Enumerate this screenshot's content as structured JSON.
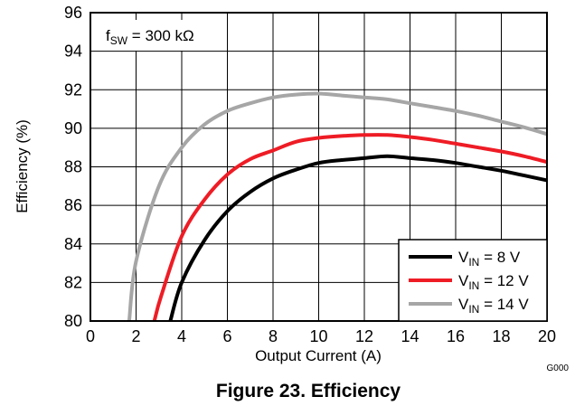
{
  "chart_data": {
    "type": "line",
    "xlabel": "Output Current (A)",
    "ylabel": "Efficiency (%)",
    "xlim": [
      0,
      20
    ],
    "ylim": [
      80,
      96
    ],
    "xticks": [
      0,
      2,
      4,
      6,
      8,
      10,
      12,
      14,
      16,
      18,
      20
    ],
    "yticks": [
      80,
      82,
      84,
      86,
      88,
      90,
      92,
      94,
      96
    ],
    "grid": true,
    "legend_placement": "bottom-right",
    "annotation": {
      "prefix": "f",
      "subscript": "SW",
      "suffix": " = 300 kΩ"
    },
    "series": [
      {
        "name": "VIN = 8 V",
        "legend": {
          "prefix": "V",
          "subscript": "IN",
          "suffix": " = 8 V"
        },
        "color": "#000000",
        "x": [
          3.5,
          4.0,
          5.0,
          6.0,
          7.0,
          8.0,
          9.0,
          10.0,
          11.0,
          12.0,
          13.0,
          14.0,
          15.0,
          16.0,
          17.0,
          18.0,
          19.0,
          20.0
        ],
        "y": [
          80.0,
          82.0,
          84.2,
          85.7,
          86.7,
          87.4,
          87.85,
          88.2,
          88.35,
          88.45,
          88.55,
          88.45,
          88.35,
          88.2,
          88.0,
          87.8,
          87.55,
          87.3
        ]
      },
      {
        "name": "VIN = 12 V",
        "legend": {
          "prefix": "V",
          "subscript": "IN",
          "suffix": " = 12 V"
        },
        "color": "#ee1c25",
        "x": [
          2.8,
          3.1,
          4.0,
          5.0,
          6.0,
          7.0,
          8.0,
          9.0,
          10.0,
          11.0,
          12.0,
          13.0,
          14.0,
          15.0,
          16.0,
          17.0,
          18.0,
          19.0,
          20.0
        ],
        "y": [
          80.0,
          81.3,
          84.4,
          86.3,
          87.6,
          88.4,
          88.85,
          89.3,
          89.5,
          89.6,
          89.65,
          89.65,
          89.55,
          89.4,
          89.2,
          89.0,
          88.8,
          88.55,
          88.25
        ]
      },
      {
        "name": "VIN = 14 V",
        "legend": {
          "prefix": "V",
          "subscript": "IN",
          "suffix": " = 14 V"
        },
        "color": "#a6a6a6",
        "x": [
          1.7,
          2.0,
          3.0,
          4.0,
          5.0,
          6.0,
          7.0,
          8.0,
          9.0,
          10.0,
          11.0,
          12.0,
          13.0,
          14.0,
          15.0,
          16.0,
          17.0,
          18.0,
          19.0,
          20.0
        ],
        "y": [
          80.0,
          83.1,
          87.0,
          89.0,
          90.2,
          90.9,
          91.3,
          91.6,
          91.75,
          91.8,
          91.7,
          91.6,
          91.5,
          91.3,
          91.1,
          90.9,
          90.65,
          90.35,
          90.05,
          89.7
        ]
      }
    ]
  },
  "figure_code": "G000",
  "caption": "Figure 23. Efficiency"
}
